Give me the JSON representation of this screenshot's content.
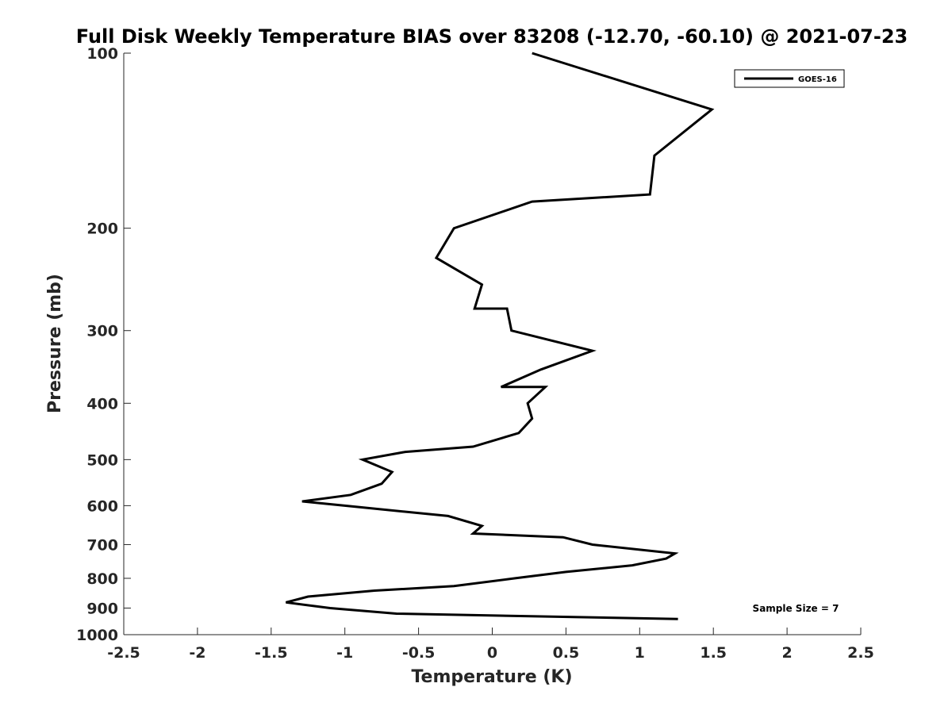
{
  "chart_data": {
    "type": "line",
    "title": "Full Disk Weekly Temperature BIAS over 83208 (-12.70, -60.10) @ 2021-07-23",
    "xlabel": "Temperature (K)",
    "ylabel": "Pressure (mb)",
    "xlim": [
      -2.5,
      2.5
    ],
    "ylim": [
      100,
      1000
    ],
    "y_scale": "log",
    "y_reversed": true,
    "x_ticks": [
      -2.5,
      -2,
      -1.5,
      -1,
      -0.5,
      0,
      0.5,
      1,
      1.5,
      2,
      2.5
    ],
    "x_tick_labels": [
      "-2.5",
      "-2",
      "-1.5",
      "-1",
      "-0.5",
      "0",
      "0.5",
      "1",
      "1.5",
      "2",
      "2.5"
    ],
    "y_ticks": [
      100,
      200,
      300,
      400,
      500,
      600,
      700,
      800,
      900,
      1000
    ],
    "y_tick_labels": [
      "100",
      "200",
      "300",
      "400",
      "500",
      "600",
      "700",
      "800",
      "900",
      "1000"
    ],
    "grid": false,
    "legend": {
      "position": "top-right",
      "entries": [
        "GOES-16"
      ]
    },
    "annotation": "Sample Size = 7",
    "series": [
      {
        "name": "GOES-16",
        "color": "#000000",
        "points": [
          {
            "x": 0.27,
            "y": 100
          },
          {
            "x": 1.49,
            "y": 125
          },
          {
            "x": 1.1,
            "y": 150
          },
          {
            "x": 1.07,
            "y": 175
          },
          {
            "x": 0.27,
            "y": 180
          },
          {
            "x": -0.26,
            "y": 200
          },
          {
            "x": -0.38,
            "y": 225
          },
          {
            "x": -0.07,
            "y": 250
          },
          {
            "x": -0.12,
            "y": 275
          },
          {
            "x": 0.1,
            "y": 275
          },
          {
            "x": 0.13,
            "y": 300
          },
          {
            "x": 0.68,
            "y": 325
          },
          {
            "x": 0.33,
            "y": 350
          },
          {
            "x": 0.06,
            "y": 375
          },
          {
            "x": 0.36,
            "y": 375
          },
          {
            "x": 0.24,
            "y": 400
          },
          {
            "x": 0.27,
            "y": 425
          },
          {
            "x": 0.18,
            "y": 450
          },
          {
            "x": -0.13,
            "y": 475
          },
          {
            "x": -0.59,
            "y": 485
          },
          {
            "x": -0.88,
            "y": 500
          },
          {
            "x": -0.68,
            "y": 525
          },
          {
            "x": -0.75,
            "y": 550
          },
          {
            "x": -0.96,
            "y": 575
          },
          {
            "x": -1.29,
            "y": 590
          },
          {
            "x": -1.0,
            "y": 600
          },
          {
            "x": -0.3,
            "y": 625
          },
          {
            "x": -0.07,
            "y": 650
          },
          {
            "x": -0.13,
            "y": 670
          },
          {
            "x": 0.48,
            "y": 680
          },
          {
            "x": 0.68,
            "y": 700
          },
          {
            "x": 1.24,
            "y": 725
          },
          {
            "x": 1.18,
            "y": 740
          },
          {
            "x": 0.95,
            "y": 760
          },
          {
            "x": 0.5,
            "y": 780
          },
          {
            "x": 0.15,
            "y": 800
          },
          {
            "x": -0.26,
            "y": 825
          },
          {
            "x": -0.8,
            "y": 840
          },
          {
            "x": -1.25,
            "y": 860
          },
          {
            "x": -1.4,
            "y": 880
          },
          {
            "x": -1.1,
            "y": 900
          },
          {
            "x": -0.65,
            "y": 920
          },
          {
            "x": 1.26,
            "y": 940
          }
        ]
      }
    ]
  }
}
